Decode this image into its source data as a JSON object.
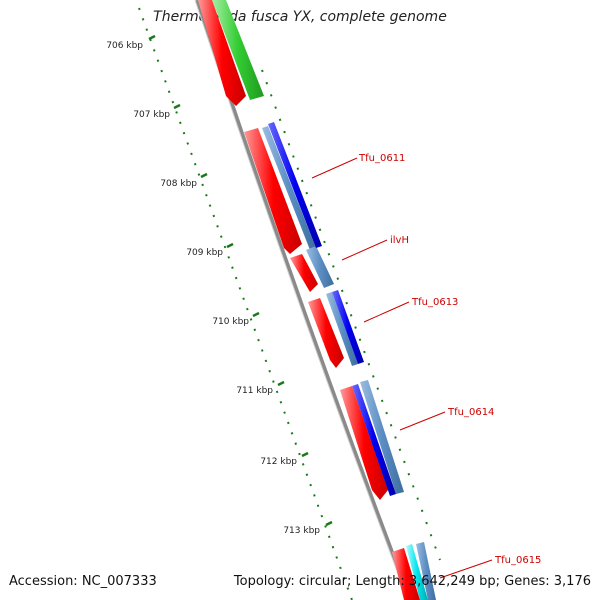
{
  "title": "Thermobifida fusca YX, complete genome",
  "footer": {
    "accession": "Accession: NC_007333",
    "summary": "Topology: circular; Length: 3,642,249 bp; Genes: 3,176"
  },
  "kbp_labels": [
    "706 kbp",
    "707 kbp",
    "708 kbp",
    "709 kbp",
    "710 kbp",
    "711 kbp",
    "712 kbp",
    "713 kbp"
  ],
  "gene_labels": [
    "Tfu_0611",
    "ilvH",
    "Tfu_0613",
    "Tfu_0614",
    "Tfu_0615"
  ],
  "colors": {
    "backbone": "#888888",
    "cds": "#ff0000",
    "gene": "#0000ee",
    "feature": "#5b8ec4",
    "other": "#33cc33",
    "extra": "#00e5ee",
    "tick": "#1a7a1a",
    "label": "#cc0000"
  }
}
